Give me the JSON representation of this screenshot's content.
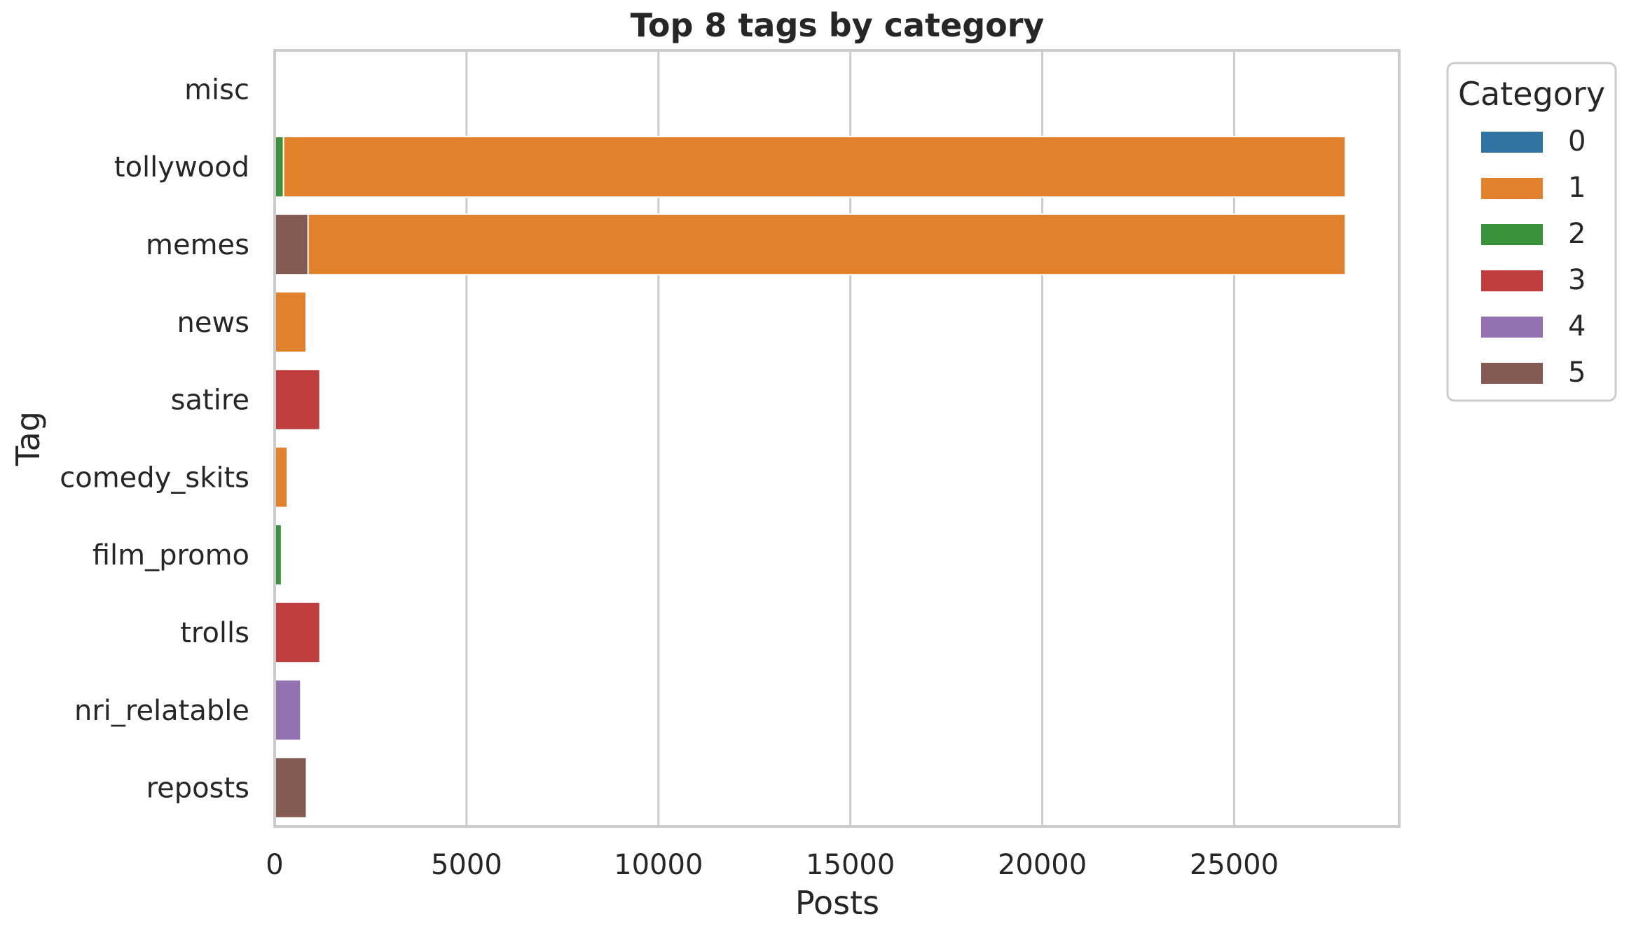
{
  "chart_data": {
    "type": "bar",
    "orientation": "horizontal",
    "title": "Top 8 tags by category",
    "xlabel": "Posts",
    "ylabel": "Tag",
    "xlim": [
      0,
      29300
    ],
    "xticks": [
      0,
      5000,
      10000,
      15000,
      20000,
      25000
    ],
    "grid": true,
    "categories": [
      "misc",
      "tollywood",
      "memes",
      "news",
      "satire",
      "comedy_skits",
      "film_promo",
      "trolls",
      "nri_relatable",
      "reposts"
    ],
    "legend": {
      "title": "Category",
      "placement": "outside-top-right",
      "entries": [
        {
          "label": "0",
          "color": "#3274a1"
        },
        {
          "label": "1",
          "color": "#e1812c"
        },
        {
          "label": "2",
          "color": "#3a923a"
        },
        {
          "label": "3",
          "color": "#c03d3e"
        },
        {
          "label": "4",
          "color": "#9372b2"
        },
        {
          "label": "5",
          "color": "#845b53"
        }
      ]
    },
    "series": [
      {
        "name": "0",
        "color": "#3274a1",
        "values": [
          0,
          0,
          0,
          0,
          0,
          0,
          0,
          0,
          0,
          0
        ]
      },
      {
        "name": "1",
        "color": "#e1812c",
        "values": [
          0,
          27900,
          27900,
          820,
          0,
          330,
          0,
          0,
          0,
          0
        ]
      },
      {
        "name": "2",
        "color": "#3a923a",
        "values": [
          0,
          230,
          0,
          0,
          0,
          0,
          180,
          0,
          0,
          0
        ]
      },
      {
        "name": "3",
        "color": "#c03d3e",
        "values": [
          0,
          0,
          0,
          0,
          1180,
          0,
          0,
          1180,
          0,
          0
        ]
      },
      {
        "name": "4",
        "color": "#9372b2",
        "values": [
          0,
          0,
          0,
          0,
          0,
          0,
          0,
          0,
          680,
          0
        ]
      },
      {
        "name": "5",
        "color": "#845b53",
        "values": [
          0,
          0,
          870,
          0,
          0,
          0,
          0,
          0,
          0,
          830
        ]
      }
    ]
  }
}
